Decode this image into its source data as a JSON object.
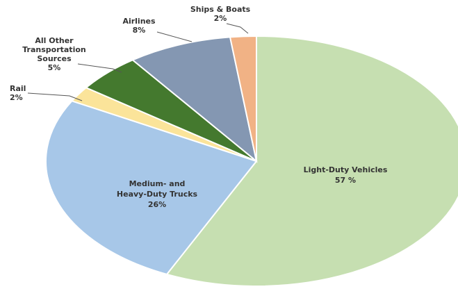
{
  "chart_data": {
    "type": "pie",
    "slices": [
      {
        "label_lines": [
          "Light-Duty Vehicles",
          "57 %"
        ],
        "value": 57,
        "color": "#c6dfb1"
      },
      {
        "label_lines": [
          "Medium- and",
          "Heavy-Duty Trucks",
          "26%"
        ],
        "value": 26,
        "color": "#a7c7e8"
      },
      {
        "label_lines": [
          "Rail",
          "2%"
        ],
        "value": 2,
        "color": "#fbe49a"
      },
      {
        "label_lines": [
          "All Other",
          "Transportation",
          "Sources",
          "5%"
        ],
        "value": 5,
        "color": "#44792e"
      },
      {
        "label_lines": [
          "Airlines",
          "8%"
        ],
        "value": 8,
        "color": "#8497b2"
      },
      {
        "label_lines": [
          "Ships & Boats",
          "2%"
        ],
        "value": 2,
        "color": "#f1b285"
      }
    ],
    "start_angle_deg": 0,
    "direction": "clockwise",
    "legend": "none"
  }
}
